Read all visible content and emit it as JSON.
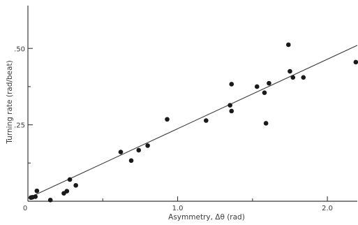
{
  "chart_data": {
    "type": "scatter",
    "xlabel": "Asymmetry, Δθ   (rad)",
    "ylabel": "Turning rate  (rad/beat)",
    "xlim": [
      0,
      2.2
    ],
    "ylim": [
      0,
      0.64
    ],
    "x_ticks": [
      {
        "value": 0,
        "label": "0"
      },
      {
        "value": 1.0,
        "label": "1.0"
      },
      {
        "value": 2.0,
        "label": "2.0"
      }
    ],
    "x_minor_ticks": [
      0.5,
      1.5
    ],
    "y_ticks": [
      {
        "value": 0.25,
        "label": ".25"
      },
      {
        "value": 0.5,
        "label": ".50"
      }
    ],
    "y_minor_ticks": [
      0.125,
      0.375
    ],
    "grid": false,
    "legend": "none",
    "fit_line": {
      "x": [
        0,
        2.2
      ],
      "y": [
        0.01,
        0.51
      ]
    },
    "points": [
      {
        "x": 0.02,
        "y": 0.012
      },
      {
        "x": 0.03,
        "y": 0.013
      },
      {
        "x": 0.05,
        "y": 0.015
      },
      {
        "x": 0.06,
        "y": 0.034
      },
      {
        "x": 0.15,
        "y": 0.004
      },
      {
        "x": 0.24,
        "y": 0.026
      },
      {
        "x": 0.26,
        "y": 0.033
      },
      {
        "x": 0.28,
        "y": 0.071
      },
      {
        "x": 0.32,
        "y": 0.052
      },
      {
        "x": 0.62,
        "y": 0.161
      },
      {
        "x": 0.69,
        "y": 0.133
      },
      {
        "x": 0.74,
        "y": 0.167
      },
      {
        "x": 0.8,
        "y": 0.182
      },
      {
        "x": 0.93,
        "y": 0.268
      },
      {
        "x": 1.19,
        "y": 0.264
      },
      {
        "x": 1.35,
        "y": 0.314
      },
      {
        "x": 1.36,
        "y": 0.383
      },
      {
        "x": 1.36,
        "y": 0.295
      },
      {
        "x": 1.53,
        "y": 0.375
      },
      {
        "x": 1.58,
        "y": 0.355
      },
      {
        "x": 1.59,
        "y": 0.255
      },
      {
        "x": 1.61,
        "y": 0.386
      },
      {
        "x": 1.74,
        "y": 0.512
      },
      {
        "x": 1.75,
        "y": 0.425
      },
      {
        "x": 1.77,
        "y": 0.405
      },
      {
        "x": 1.84,
        "y": 0.405
      },
      {
        "x": 2.19,
        "y": 0.455
      }
    ]
  }
}
